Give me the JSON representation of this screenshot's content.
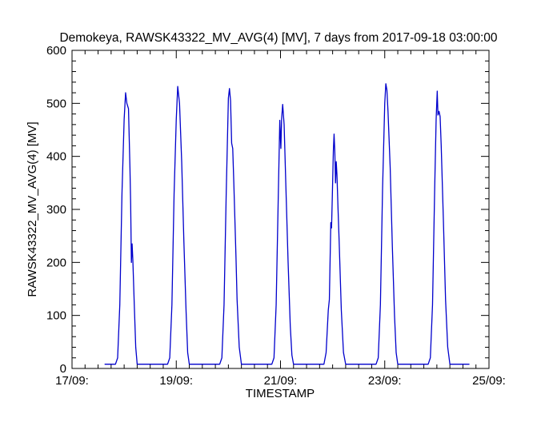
{
  "chart_data": {
    "type": "line",
    "title": "Demokeya, RAWSK43322_MV_AVG(4) [MV], 7 days from  2017-09-18 03:00:00",
    "xlabel": "TIMESTAMP",
    "ylabel": "RAWSK43322_MV_AVG(4) [MV]",
    "xlim": [
      "2017-09-17T00:00",
      "2017-09-25T00:00"
    ],
    "ylim": [
      0,
      600
    ],
    "grid": false,
    "y_ticks": [
      0,
      100,
      200,
      300,
      400,
      500,
      600
    ],
    "x_ticks": [
      {
        "x": "2017-09-17T00:00",
        "label": "17/09:"
      },
      {
        "x": "2017-09-19T00:00",
        "label": "19/09:"
      },
      {
        "x": "2017-09-21T00:00",
        "label": "21/09:"
      },
      {
        "x": "2017-09-23T00:00",
        "label": "23/09:"
      },
      {
        "x": "2017-09-25T00:00",
        "label": "25/09:"
      }
    ],
    "series": [
      {
        "color": "#0000cc",
        "points": [
          [
            "2017-09-17T15:00",
            8
          ],
          [
            "2017-09-17T20:00",
            8
          ],
          [
            "2017-09-17T21:00",
            20
          ],
          [
            "2017-09-17T22:00",
            120
          ],
          [
            "2017-09-17T23:00",
            330
          ],
          [
            "2017-09-18T00:00",
            470
          ],
          [
            "2017-09-18T00:40",
            520
          ],
          [
            "2017-09-18T01:15",
            500
          ],
          [
            "2017-09-18T02:00",
            490
          ],
          [
            "2017-09-18T02:40",
            380
          ],
          [
            "2017-09-18T03:00",
            310
          ],
          [
            "2017-09-18T03:20",
            200
          ],
          [
            "2017-09-18T03:40",
            235
          ],
          [
            "2017-09-18T04:00",
            205
          ],
          [
            "2017-09-18T04:40",
            120
          ],
          [
            "2017-09-18T05:20",
            40
          ],
          [
            "2017-09-18T06:00",
            8
          ],
          [
            "2017-09-18T20:00",
            8
          ],
          [
            "2017-09-18T21:00",
            20
          ],
          [
            "2017-09-18T22:00",
            120
          ],
          [
            "2017-09-18T23:00",
            330
          ],
          [
            "2017-09-19T00:00",
            470
          ],
          [
            "2017-09-19T00:40",
            532
          ],
          [
            "2017-09-19T01:30",
            500
          ],
          [
            "2017-09-19T02:30",
            390
          ],
          [
            "2017-09-19T03:30",
            240
          ],
          [
            "2017-09-19T04:30",
            110
          ],
          [
            "2017-09-19T05:15",
            30
          ],
          [
            "2017-09-19T06:00",
            8
          ],
          [
            "2017-09-19T20:00",
            8
          ],
          [
            "2017-09-19T21:00",
            20
          ],
          [
            "2017-09-19T22:00",
            120
          ],
          [
            "2017-09-19T23:00",
            330
          ],
          [
            "2017-09-20T00:00",
            510
          ],
          [
            "2017-09-20T00:30",
            528
          ],
          [
            "2017-09-20T01:00",
            505
          ],
          [
            "2017-09-20T01:30",
            425
          ],
          [
            "2017-09-20T02:00",
            415
          ],
          [
            "2017-09-20T02:30",
            350
          ],
          [
            "2017-09-20T03:00",
            280
          ],
          [
            "2017-09-20T03:30",
            210
          ],
          [
            "2017-09-20T04:00",
            130
          ],
          [
            "2017-09-20T05:00",
            40
          ],
          [
            "2017-09-20T06:00",
            8
          ],
          [
            "2017-09-20T20:00",
            8
          ],
          [
            "2017-09-20T21:00",
            20
          ],
          [
            "2017-09-20T22:00",
            120
          ],
          [
            "2017-09-20T23:00",
            330
          ],
          [
            "2017-09-20T23:40",
            468
          ],
          [
            "2017-09-21T00:10",
            415
          ],
          [
            "2017-09-21T00:30",
            470
          ],
          [
            "2017-09-21T01:00",
            498
          ],
          [
            "2017-09-21T01:40",
            460
          ],
          [
            "2017-09-21T02:30",
            340
          ],
          [
            "2017-09-21T03:30",
            200
          ],
          [
            "2017-09-21T04:30",
            80
          ],
          [
            "2017-09-21T05:15",
            25
          ],
          [
            "2017-09-21T06:00",
            8
          ],
          [
            "2017-09-21T20:00",
            8
          ],
          [
            "2017-09-21T21:00",
            30
          ],
          [
            "2017-09-21T22:00",
            110
          ],
          [
            "2017-09-21T22:30",
            130
          ],
          [
            "2017-09-21T23:00",
            240
          ],
          [
            "2017-09-21T23:10",
            275
          ],
          [
            "2017-09-21T23:30",
            265
          ],
          [
            "2017-09-21T23:50",
            320
          ],
          [
            "2017-09-22T00:20",
            410
          ],
          [
            "2017-09-22T00:40",
            442
          ],
          [
            "2017-09-22T01:00",
            410
          ],
          [
            "2017-09-22T01:20",
            350
          ],
          [
            "2017-09-22T01:40",
            390
          ],
          [
            "2017-09-22T02:00",
            365
          ],
          [
            "2017-09-22T02:30",
            300
          ],
          [
            "2017-09-22T03:00",
            240
          ],
          [
            "2017-09-22T04:00",
            110
          ],
          [
            "2017-09-22T05:00",
            30
          ],
          [
            "2017-09-22T06:00",
            8
          ],
          [
            "2017-09-22T20:00",
            8
          ],
          [
            "2017-09-22T21:00",
            20
          ],
          [
            "2017-09-22T22:00",
            120
          ],
          [
            "2017-09-22T23:00",
            340
          ],
          [
            "2017-09-23T00:00",
            500
          ],
          [
            "2017-09-23T00:30",
            537
          ],
          [
            "2017-09-23T01:00",
            525
          ],
          [
            "2017-09-23T01:30",
            485
          ],
          [
            "2017-09-23T02:30",
            380
          ],
          [
            "2017-09-23T03:30",
            230
          ],
          [
            "2017-09-23T04:30",
            100
          ],
          [
            "2017-09-23T05:15",
            30
          ],
          [
            "2017-09-23T06:00",
            8
          ],
          [
            "2017-09-23T20:00",
            8
          ],
          [
            "2017-09-23T21:00",
            20
          ],
          [
            "2017-09-23T22:00",
            120
          ],
          [
            "2017-09-23T23:00",
            340
          ],
          [
            "2017-09-23T23:40",
            470
          ],
          [
            "2017-09-24T00:10",
            523
          ],
          [
            "2017-09-24T00:30",
            478
          ],
          [
            "2017-09-24T01:00",
            485
          ],
          [
            "2017-09-24T01:30",
            475
          ],
          [
            "2017-09-24T02:00",
            420
          ],
          [
            "2017-09-24T03:00",
            280
          ],
          [
            "2017-09-24T04:00",
            130
          ],
          [
            "2017-09-24T05:00",
            40
          ],
          [
            "2017-09-24T06:00",
            8
          ],
          [
            "2017-09-24T15:00",
            8
          ]
        ]
      }
    ]
  }
}
